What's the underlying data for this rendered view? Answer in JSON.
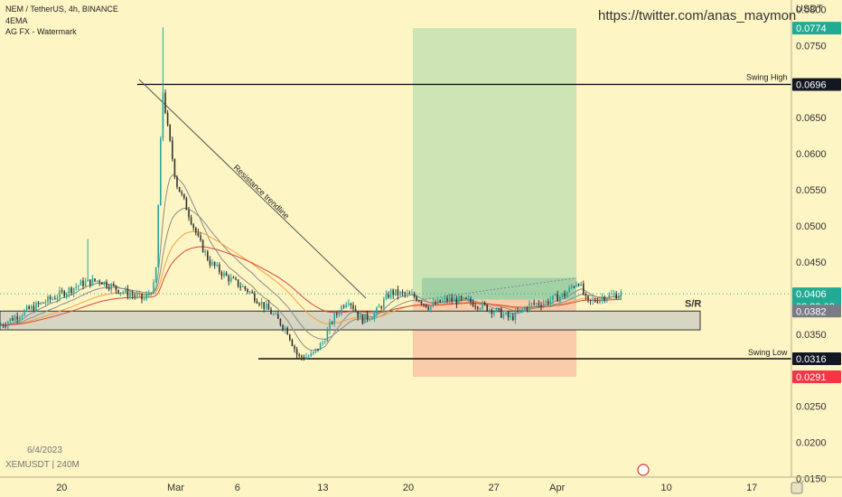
{
  "header": {
    "title": "NEM / TetherUS, 4h, BINANCE",
    "indicator": "4EMA",
    "watermark_label": "AG FX - Watermark"
  },
  "url_text": "https://twitter.com/anas_maymon",
  "footer": {
    "date": "6/4/2023",
    "symbol": "XEMUSDT | 240M"
  },
  "chart_data": {
    "type": "candlestick",
    "currency": "USDT",
    "ylim": [
      0.0152,
      0.0813
    ],
    "y_ticks": [
      {
        "v": 0.08,
        "label": "0.0800"
      },
      {
        "v": 0.075,
        "label": "0.0750"
      },
      {
        "v": 0.065,
        "label": "0.0650"
      },
      {
        "v": 0.06,
        "label": "0.0600"
      },
      {
        "v": 0.055,
        "label": "0.0550"
      },
      {
        "v": 0.05,
        "label": "0.0500"
      },
      {
        "v": 0.045,
        "label": "0.0450"
      },
      {
        "v": 0.035,
        "label": "0.0350"
      },
      {
        "v": 0.025,
        "label": "0.0250"
      },
      {
        "v": 0.02,
        "label": "0.0200"
      },
      {
        "v": 0.015,
        "label": "0.0150"
      }
    ],
    "x_labels": [
      {
        "pos": 0.078,
        "label": "20"
      },
      {
        "pos": 0.222,
        "label": "Mar"
      },
      {
        "pos": 0.3,
        "label": "6"
      },
      {
        "pos": 0.408,
        "label": "13"
      },
      {
        "pos": 0.516,
        "label": "20"
      },
      {
        "pos": 0.624,
        "label": "27"
      },
      {
        "pos": 0.704,
        "label": "Apr"
      },
      {
        "pos": 0.842,
        "label": "10"
      },
      {
        "pos": 0.95,
        "label": "17"
      }
    ],
    "price_badges": [
      {
        "v": 0.0774,
        "label": "0.0774",
        "color": "#22ab94"
      },
      {
        "v": 0.0696,
        "label": "0.0696",
        "color": "#131722"
      },
      {
        "v": 0.0406,
        "label": "0.0406",
        "color": "#22ab94",
        "sub": "02:23:08"
      },
      {
        "v": 0.0382,
        "label": "0.0382",
        "color": "#787b86"
      },
      {
        "v": 0.0316,
        "label": "0.0316",
        "color": "#131722"
      },
      {
        "v": 0.0291,
        "label": "0.0291",
        "color": "#f23645"
      }
    ],
    "levels": {
      "swing_high": {
        "v": 0.0696,
        "label": "Swing High"
      },
      "swing_low": {
        "v": 0.0316,
        "label": "Swing Low"
      },
      "sr_zone": {
        "top": 0.0382,
        "bottom": 0.0356,
        "label": "S/R"
      }
    },
    "position": {
      "entry": 0.0398,
      "target": 0.0774,
      "stop": 0.0291
    },
    "trendline_label": "Resistance trendline",
    "colors": {
      "up": "#26a69a",
      "down": "#333333",
      "profit": "#a5d6a7",
      "loss": "#f8bba0",
      "ema_fast": "#8c8c8c",
      "ema_mid": "#f4a23c",
      "ema_slow": "#e0453a"
    }
  }
}
